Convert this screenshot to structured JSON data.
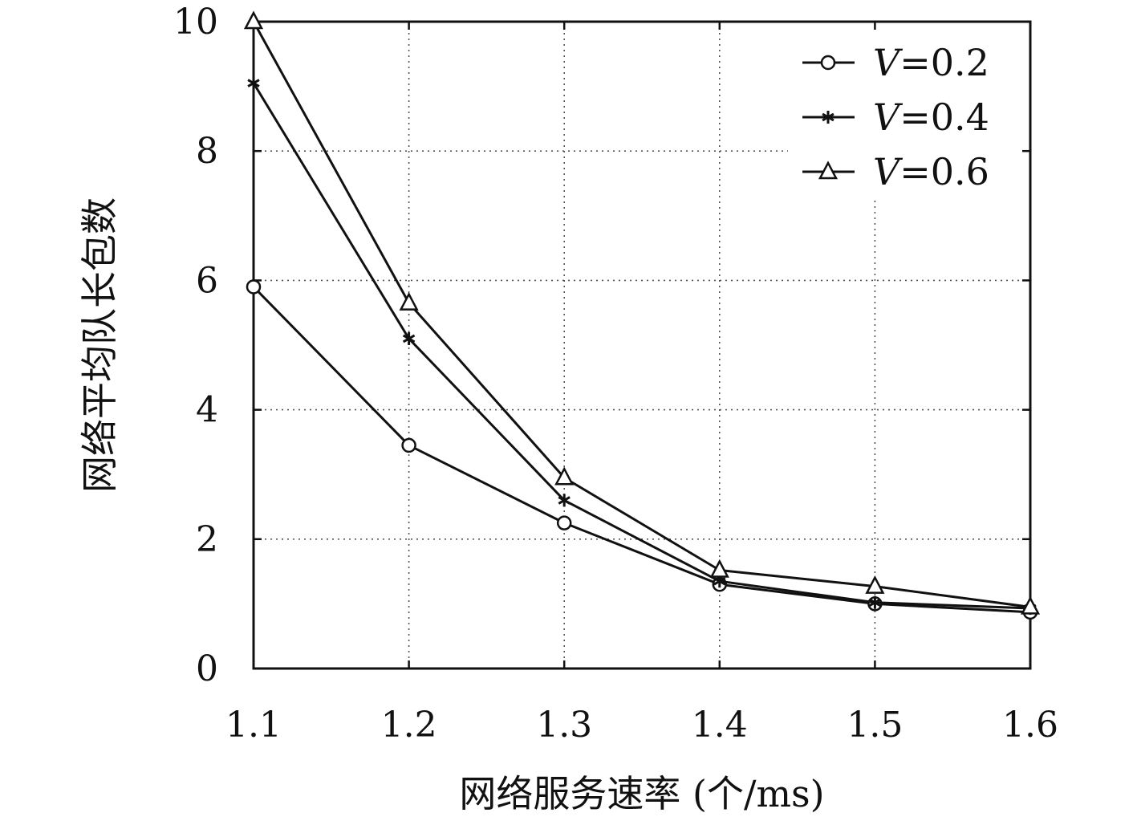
{
  "chart_data": {
    "type": "line",
    "title": "",
    "xlabel": "网络服务速率 (个/ms)",
    "ylabel": "网络平均队长包数",
    "x": [
      1.1,
      1.2,
      1.3,
      1.4,
      1.5,
      1.6
    ],
    "xlim": [
      1.1,
      1.6
    ],
    "ylim": [
      0,
      10
    ],
    "xticks": [
      "1.1",
      "1.2",
      "1.3",
      "1.4",
      "1.5",
      "1.6"
    ],
    "yticks": [
      "0",
      "2",
      "4",
      "6",
      "8",
      "10"
    ],
    "grid": true,
    "legend_position": "top-right",
    "series": [
      {
        "name": "V=0.2",
        "label_var": "V",
        "label_val": "=0.2",
        "marker": "circle",
        "values": [
          5.9,
          3.45,
          2.25,
          1.3,
          1.0,
          0.87
        ]
      },
      {
        "name": "V=0.4",
        "label_var": "V",
        "label_val": "=0.4",
        "marker": "star",
        "values": [
          9.05,
          5.1,
          2.6,
          1.35,
          1.02,
          0.93
        ]
      },
      {
        "name": "V=0.6",
        "label_var": "V",
        "label_val": "=0.6",
        "marker": "triangle",
        "values": [
          10.0,
          5.65,
          2.95,
          1.52,
          1.27,
          0.95
        ]
      }
    ]
  }
}
